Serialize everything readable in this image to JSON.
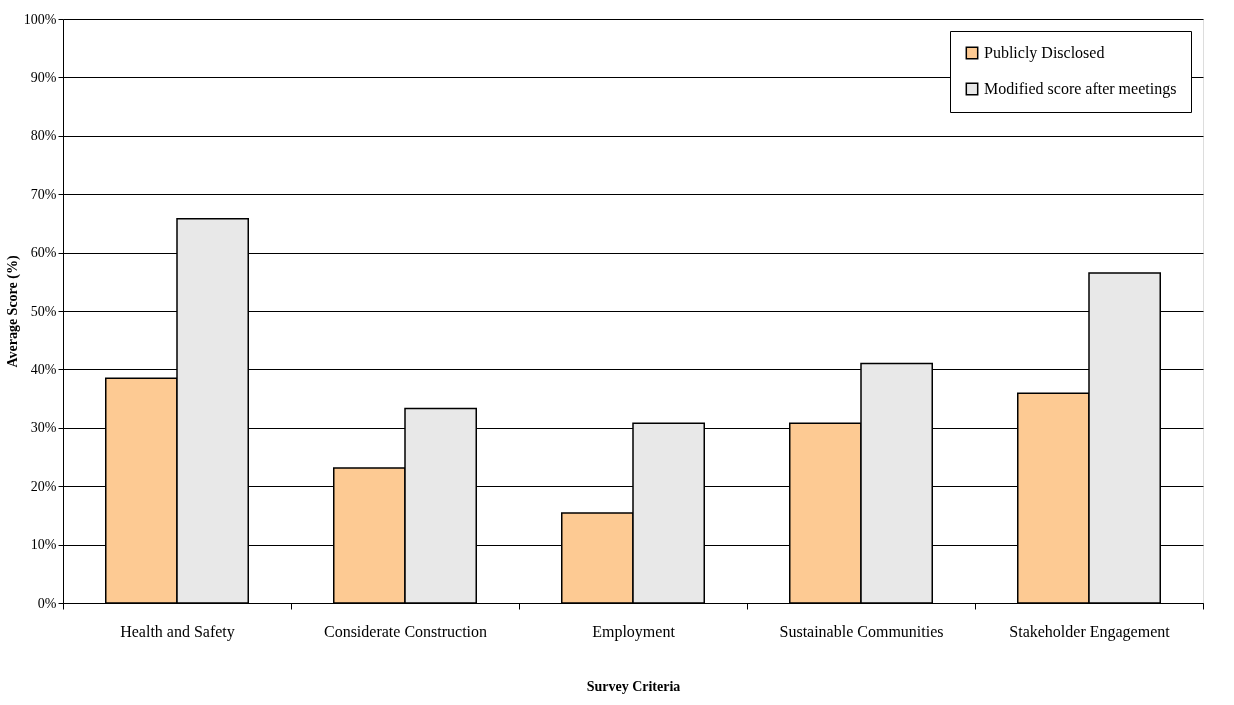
{
  "chart_data": {
    "type": "bar",
    "xlabel": "Survey Criteria",
    "ylabel": "Average Score (%)",
    "categories": [
      "Health and Safety",
      "Considerate Construction",
      "Employment",
      "Sustainable Communities",
      "Stakeholder Engagement"
    ],
    "series": [
      {
        "name": "Publicly Disclosed",
        "color": "#fdca93",
        "values": [
          38.5,
          23.1,
          15.4,
          30.8,
          35.9
        ]
      },
      {
        "name": "Modified score after meetings",
        "color": "#e8e8e8",
        "values": [
          65.8,
          33.3,
          30.8,
          41.0,
          56.5
        ]
      }
    ],
    "ylim": [
      0,
      100
    ],
    "yticks": [
      {
        "value": 0,
        "label": "0%"
      },
      {
        "value": 10,
        "label": "10%"
      },
      {
        "value": 20,
        "label": "20%"
      },
      {
        "value": 30,
        "label": "30%"
      },
      {
        "value": 40,
        "label": "40%"
      },
      {
        "value": 50,
        "label": "50%"
      },
      {
        "value": 60,
        "label": "60%"
      },
      {
        "value": 70,
        "label": "70%"
      },
      {
        "value": 80,
        "label": "80%"
      },
      {
        "value": 90,
        "label": "90%"
      },
      {
        "value": 100,
        "label": "100%"
      }
    ],
    "grid": "y",
    "legend": "top right"
  }
}
